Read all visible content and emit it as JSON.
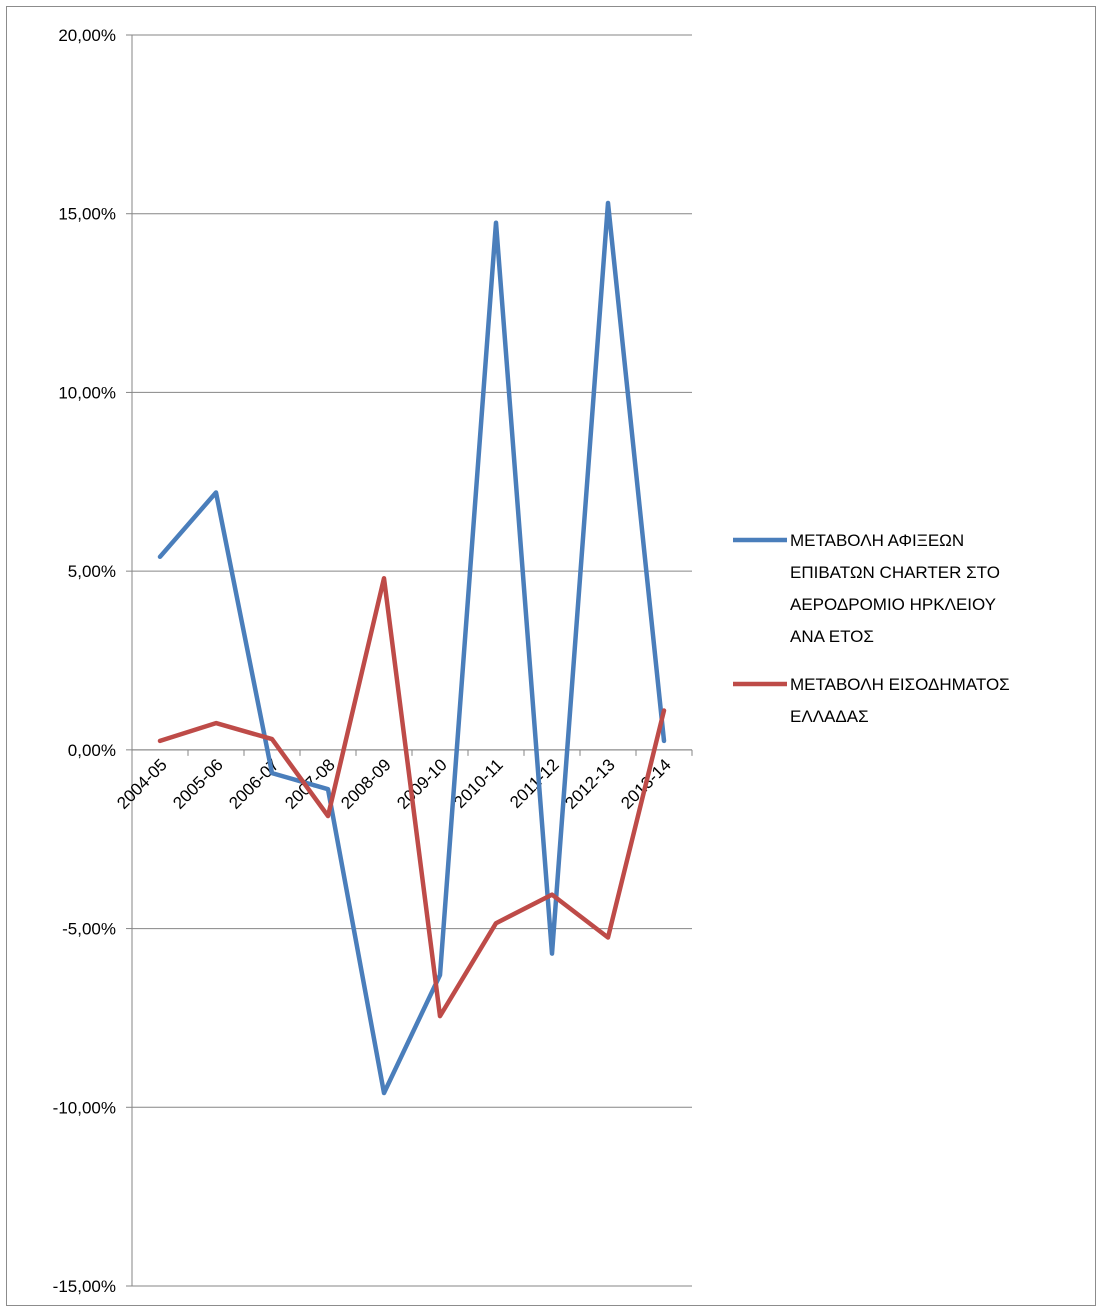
{
  "chart_data": {
    "type": "line",
    "title": "",
    "xlabel": "",
    "ylabel": "",
    "ylim": [
      -0.15,
      0.2
    ],
    "ytick_step": 0.05,
    "grid": true,
    "legend_position": "right",
    "categories": [
      "2004-05",
      "2005-06",
      "2006-07",
      "2007-08",
      "2008-09",
      "2009-10",
      "2010-11",
      "2011-12",
      "2012-13",
      "2013-14"
    ],
    "y_tick_labels": [
      "20,00%",
      "15,00%",
      "10,00%",
      "5,00%",
      "0,00%",
      "-5,00%",
      "-10,00%",
      "-15,00%"
    ],
    "series": [
      {
        "name": "ΜΕΤΑΒΟΛΗ ΑΦΙΞΕΩΝ ΕΠΙΒΑΤΩΝ CHARTER ΣΤΟ ΑΕΡΟΔΡΟΜΙΟ ΗΡΚΛΕΙΟΥ ΑΝΑ ΕΤΟΣ",
        "legend_lines": [
          "ΜΕΤΑΒΟΛΗ ΑΦΙΞΕΩΝ",
          "ΕΠΙΒΑΤΩΝ CHARTER ΣΤΟ",
          "ΑΕΡΟΔΡΟΜΙΟ ΗΡΚΛΕΙΟΥ",
          "ΑΝΑ ΕΤΟΣ"
        ],
        "color": "#4a7ebb",
        "values": [
          0.054,
          0.072,
          -0.0065,
          -0.011,
          -0.096,
          -0.063,
          0.1475,
          -0.057,
          0.153,
          0.0025
        ]
      },
      {
        "name": "ΜΕΤΑΒΟΛΗ ΕΙΣΟΔΗΜΑΤΟΣ ΕΛΛΑΔΑΣ",
        "legend_lines": [
          "ΜΕΤΑΒΟΛΗ ΕΙΣΟΔΗΜΑΤΟΣ",
          "ΕΛΛΑΔΑΣ"
        ],
        "color": "#be4b48",
        "values": [
          0.0025,
          0.0075,
          0.003,
          -0.0185,
          0.048,
          -0.0745,
          -0.0485,
          -0.0405,
          -0.0525,
          0.011
        ]
      }
    ]
  }
}
